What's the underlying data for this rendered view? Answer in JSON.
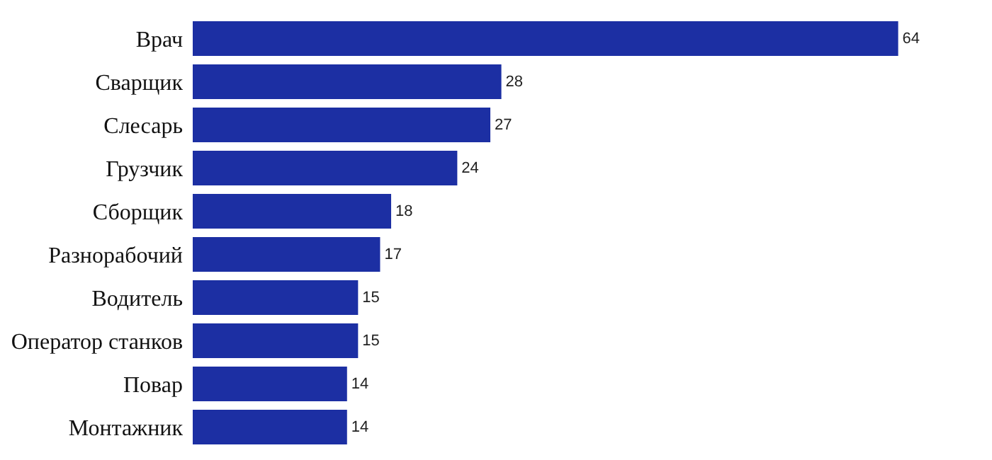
{
  "chart_data": {
    "type": "bar",
    "orientation": "horizontal",
    "categories": [
      "Врач",
      "Сварщик",
      "Слесарь",
      "Грузчик",
      "Сборщик",
      "Разнорабочий",
      "Водитель",
      "Оператор станков",
      "Повар",
      "Монтажник"
    ],
    "values": [
      64,
      28,
      27,
      24,
      18,
      17,
      15,
      15,
      14,
      14
    ],
    "color": "#1c2fa3",
    "data_labels": true
  }
}
